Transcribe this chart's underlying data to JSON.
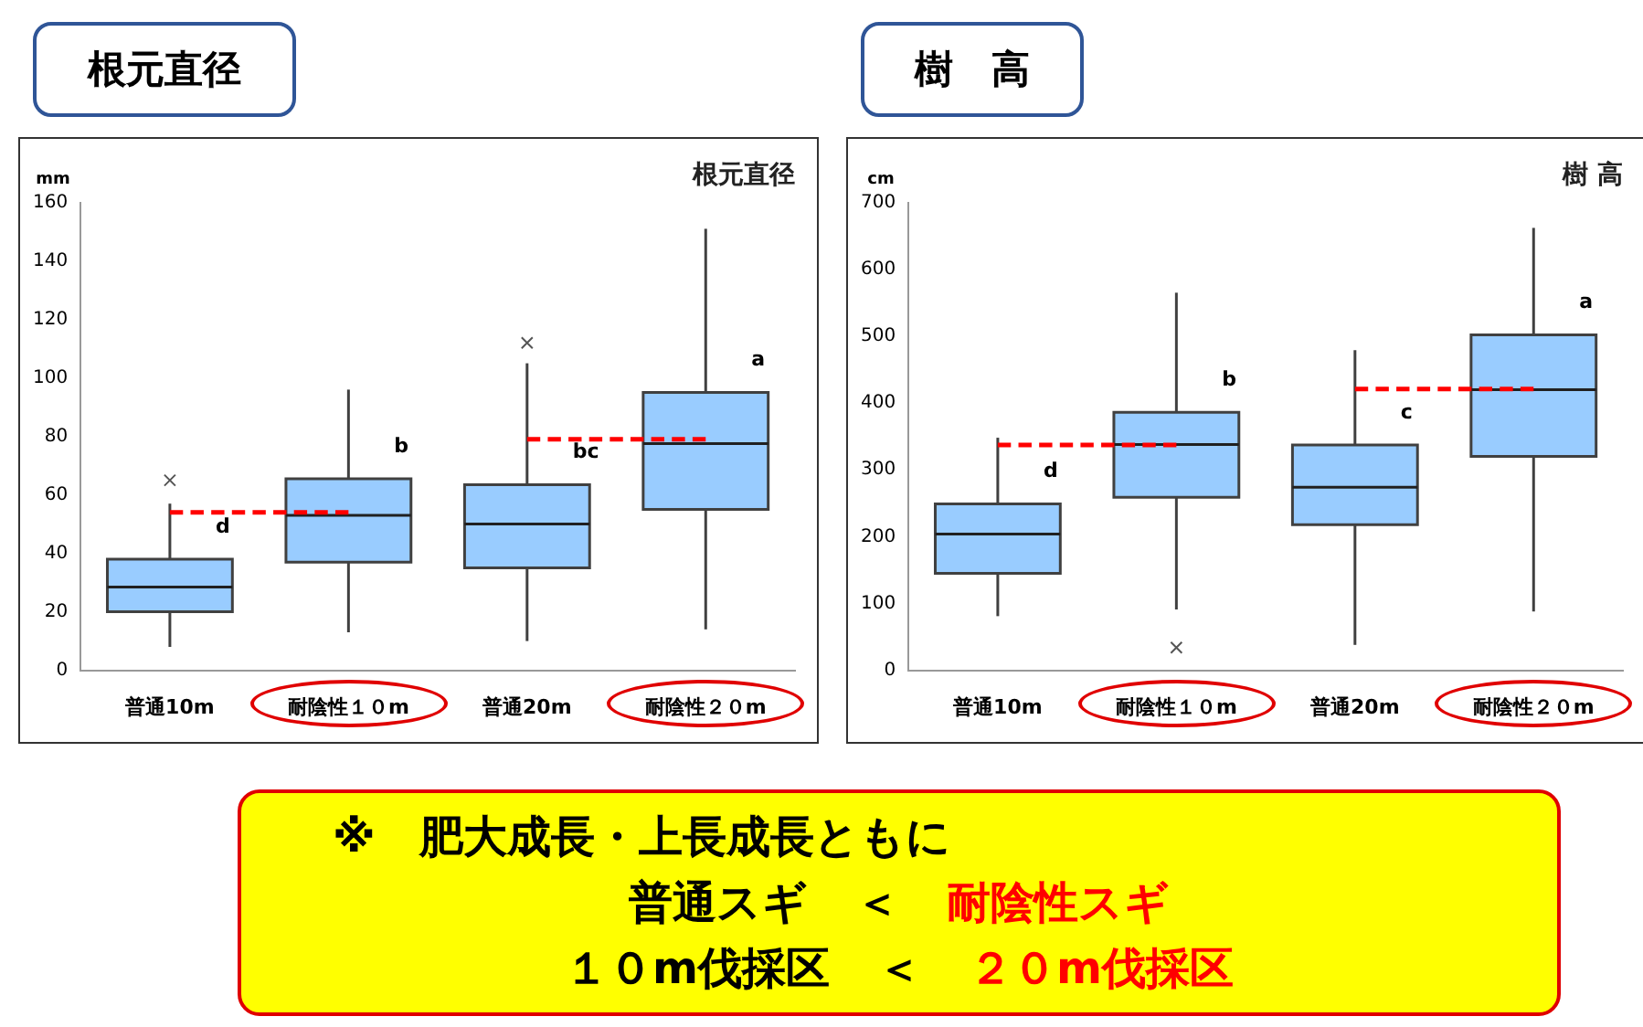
{
  "chart_data": [
    {
      "type": "box",
      "title": "根元直径",
      "subtitle": "根元直径",
      "ylabel": "mm",
      "categories": [
        "普通10m",
        "耐陰性１０m",
        "普通20m",
        "耐陰性２０m"
      ],
      "ylim": [
        0,
        160
      ],
      "yticks": [
        0,
        20,
        40,
        60,
        80,
        100,
        120,
        140,
        160
      ],
      "grid": false,
      "legend": false,
      "series": [
        {
          "type": "box",
          "color": "#99ccff",
          "boxes": [
            {
              "low": 8,
              "q1": 20,
              "median": 28.5,
              "q3": 38,
              "high": 57,
              "outliers": [
                65
              ]
            },
            {
              "low": 13,
              "q1": 37,
              "median": 53,
              "q3": 65.5,
              "high": 96
            },
            {
              "low": 10,
              "q1": 35,
              "median": 50,
              "q3": 63.5,
              "high": 105,
              "outliers": [
                112
              ]
            },
            {
              "low": 14,
              "q1": 55,
              "median": 77.5,
              "q3": 95,
              "high": 151
            }
          ]
        },
        {
          "type": "line",
          "x": [
            "普通10m",
            "耐陰性１０m"
          ],
          "values": [
            54,
            54
          ],
          "color": "#ff0000",
          "line_style": "dashed",
          "marker": "none"
        },
        {
          "type": "line",
          "x": [
            "普通20m",
            "耐陰性２０m"
          ],
          "values": [
            79,
            79
          ],
          "color": "#ff0000",
          "line_style": "dashed",
          "marker": "none"
        }
      ],
      "annotations": [
        "d",
        "b",
        "bc",
        "a"
      ]
    },
    {
      "type": "box",
      "title": "樹　高",
      "subtitle": "樹 高",
      "ylabel": "cm",
      "categories": [
        "普通10m",
        "耐陰性１０m",
        "普通20m",
        "耐陰性２０m"
      ],
      "ylim": [
        0,
        700
      ],
      "yticks": [
        0,
        100,
        200,
        300,
        400,
        500,
        600,
        700
      ],
      "grid": false,
      "legend": false,
      "series": [
        {
          "type": "box",
          "color": "#99ccff",
          "boxes": [
            {
              "low": 81,
              "q1": 145,
              "median": 204,
              "q3": 249,
              "high": 348
            },
            {
              "low": 91,
              "q1": 259,
              "median": 338,
              "q3": 386,
              "high": 565,
              "outliers": [
                34
              ]
            },
            {
              "low": 38,
              "q1": 218,
              "median": 274,
              "q3": 337,
              "high": 479
            },
            {
              "low": 88,
              "q1": 320,
              "median": 420,
              "q3": 502,
              "high": 662
            }
          ]
        },
        {
          "type": "line",
          "x": [
            "普通10m",
            "耐陰性１０m"
          ],
          "values": [
            337,
            337
          ],
          "color": "#ff0000",
          "line_style": "dashed",
          "marker": "none"
        },
        {
          "type": "line",
          "x": [
            "普通20m",
            "耐陰性２０m"
          ],
          "values": [
            421,
            421
          ],
          "color": "#ff0000",
          "line_style": "dashed",
          "marker": "none"
        }
      ],
      "annotations": [
        "d",
        "b",
        "c",
        "a"
      ]
    },
    {
      "type": "other",
      "title": "※　肥大成長・上長成長ともに",
      "annotations": [
        "普通スギ",
        "＜",
        "耐陰性スギ",
        "１０m伐採区",
        "＜",
        "２０m伐採区"
      ]
    }
  ]
}
